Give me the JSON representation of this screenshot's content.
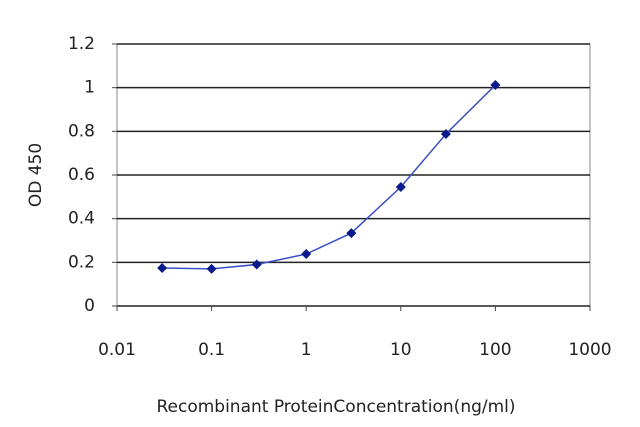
{
  "chart_data": {
    "type": "line",
    "x_label": "Recombinant ProteinConcentration(ng/ml)",
    "y_label": "OD 450",
    "x_scale": "log",
    "grid": true,
    "xlim": [
      0.01,
      1000
    ],
    "xticks": [
      0.01,
      0.1,
      1,
      10,
      100,
      1000
    ],
    "ylim": [
      0,
      1.2
    ],
    "yticks": [
      0,
      0.2,
      0.4,
      0.6,
      0.8,
      1,
      1.2
    ],
    "series": [
      {
        "color": "#3b4fc4",
        "marker_color": "#0a1a8a",
        "x": [
          0.03,
          0.1,
          0.3,
          1,
          3,
          10,
          30,
          100
        ],
        "values": [
          0.174,
          0.17,
          0.19,
          0.238,
          0.334,
          0.545,
          0.788,
          1.012
        ]
      }
    ]
  }
}
